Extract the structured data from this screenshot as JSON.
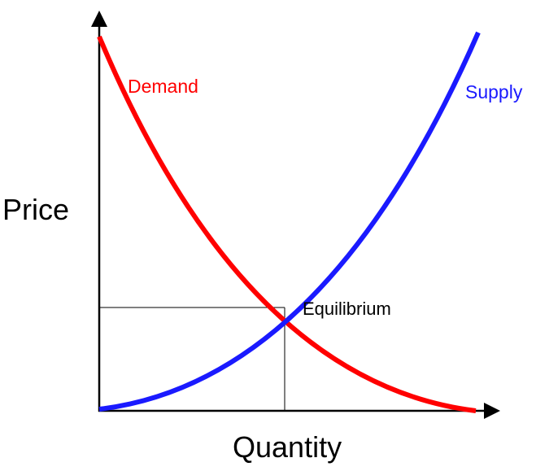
{
  "diagram": {
    "axes": {
      "y_label": "Price",
      "x_label": "Quantity"
    },
    "curves": [
      {
        "label": "Demand",
        "color": "#ff0000"
      },
      {
        "label": "Supply",
        "color": "#1a1aff"
      }
    ],
    "equilibrium_label": "Equilibrium",
    "axis_color": "#000000"
  }
}
